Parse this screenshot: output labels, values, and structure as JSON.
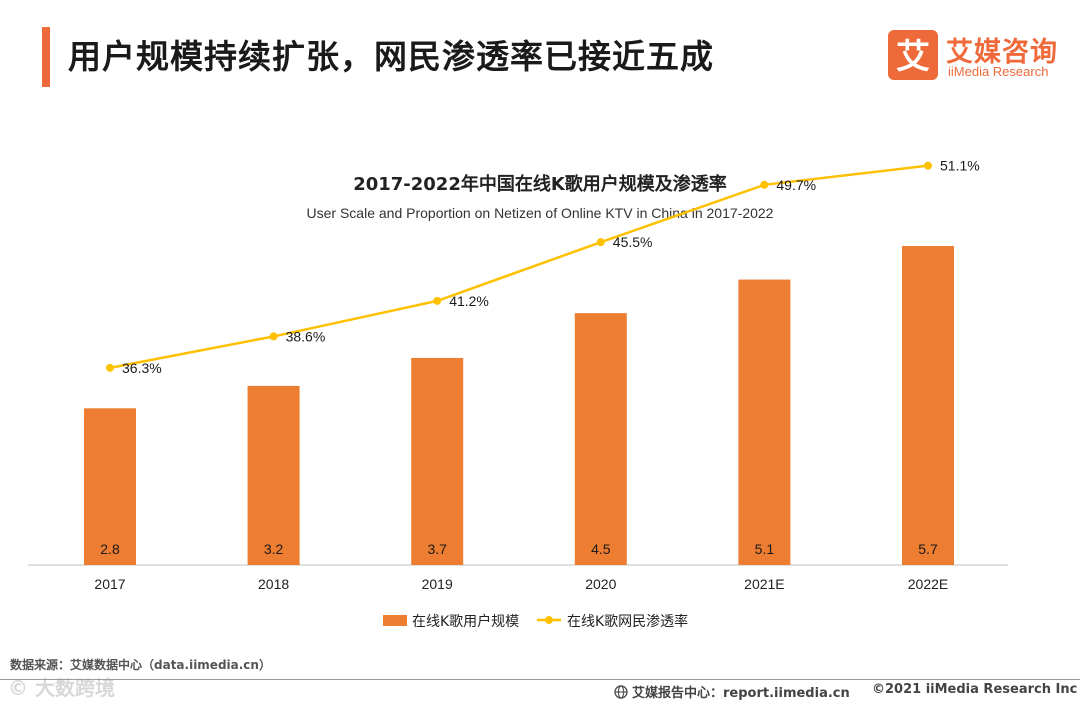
{
  "header": {
    "title": "用户规模持续扩张，网民渗透率已接近五成",
    "accent_color": "#ee6a3a"
  },
  "logo": {
    "mark": "艾",
    "name_cn": "艾媒咨询",
    "name_en": "iiMedia Research"
  },
  "chart_data": {
    "type": "bar",
    "title": "2017-2022年中国在线K歌用户规模及渗透率",
    "subtitle": "User Scale and Proportion on Netizen of Online KTV in China in 2017-2022",
    "categories": [
      "2017",
      "2018",
      "2019",
      "2020",
      "2021E",
      "2022E"
    ],
    "series": [
      {
        "name": "在线K歌用户规模",
        "kind": "bar",
        "values": [
          2.8,
          3.2,
          3.7,
          4.5,
          5.1,
          5.7
        ],
        "labels": [
          "2.8",
          "3.2",
          "3.7",
          "4.5",
          "5.1",
          "5.7"
        ],
        "color": "#ed7d31"
      },
      {
        "name": "在线K歌网民渗透率",
        "kind": "line",
        "values": [
          36.3,
          38.6,
          41.2,
          45.5,
          49.7,
          51.1
        ],
        "labels": [
          "36.3%",
          "38.6%",
          "41.2%",
          "45.5%",
          "49.7%",
          "51.1%"
        ],
        "color": "#ffc000"
      }
    ],
    "ylim_bar": [
      0,
      5.7
    ],
    "ylim_line": [
      0,
      60
    ],
    "legend": "bottom-center",
    "grid": false
  },
  "footer": {
    "source": "数据来源：艾媒数据中心（data.iimedia.cn）",
    "watermark": "© 大数跨境",
    "report_center": "艾媒报告中心：report.iimedia.cn",
    "copyright": "©2021  iiMedia Research  Inc"
  }
}
